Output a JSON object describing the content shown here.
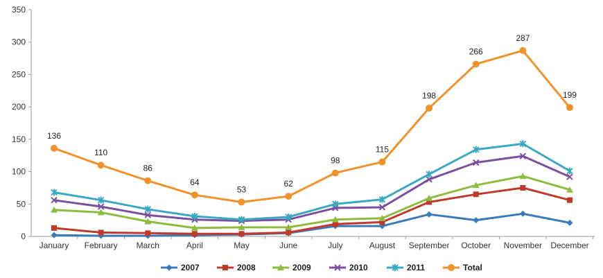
{
  "chart_data": {
    "type": "line",
    "categories": [
      "January",
      "February",
      "March",
      "April",
      "May",
      "June",
      "July",
      "August",
      "September",
      "October",
      "November",
      "December"
    ],
    "ylim": [
      0,
      350
    ],
    "yticks": [
      0,
      50,
      100,
      150,
      200,
      250,
      300,
      350
    ],
    "grid": false,
    "legend_position": "bottom",
    "series": [
      {
        "name": "2007",
        "color": "#3a7ab8",
        "marker": "diamond",
        "values": [
          2,
          1,
          1,
          2,
          3,
          5,
          16,
          16,
          34,
          25,
          35,
          21
        ]
      },
      {
        "name": "2008",
        "color": "#c0392b",
        "marker": "square",
        "values": [
          13,
          6,
          5,
          4,
          4,
          6,
          19,
          22,
          53,
          65,
          75,
          56
        ]
      },
      {
        "name": "2009",
        "color": "#8fbc3f",
        "marker": "triangle",
        "values": [
          41,
          37,
          23,
          13,
          14,
          14,
          26,
          28,
          59,
          79,
          93,
          72
        ]
      },
      {
        "name": "2010",
        "color": "#7b4fa0",
        "marker": "x",
        "values": [
          56,
          46,
          33,
          26,
          24,
          26,
          44,
          45,
          88,
          114,
          124,
          92
        ]
      },
      {
        "name": "2011",
        "color": "#3aa8c1",
        "marker": "star",
        "values": [
          68,
          56,
          42,
          31,
          26,
          30,
          50,
          57,
          96,
          134,
          143,
          101
        ]
      },
      {
        "name": "Total",
        "color": "#f0922b",
        "marker": "circle",
        "values": [
          136,
          110,
          86,
          64,
          53,
          62,
          98,
          115,
          198,
          266,
          287,
          199
        ]
      }
    ],
    "data_labels": {
      "series": "Total",
      "values": [
        "136",
        "110",
        "86",
        "64",
        "53",
        "62",
        "98",
        "115",
        "198",
        "266",
        "287",
        "199"
      ]
    }
  }
}
